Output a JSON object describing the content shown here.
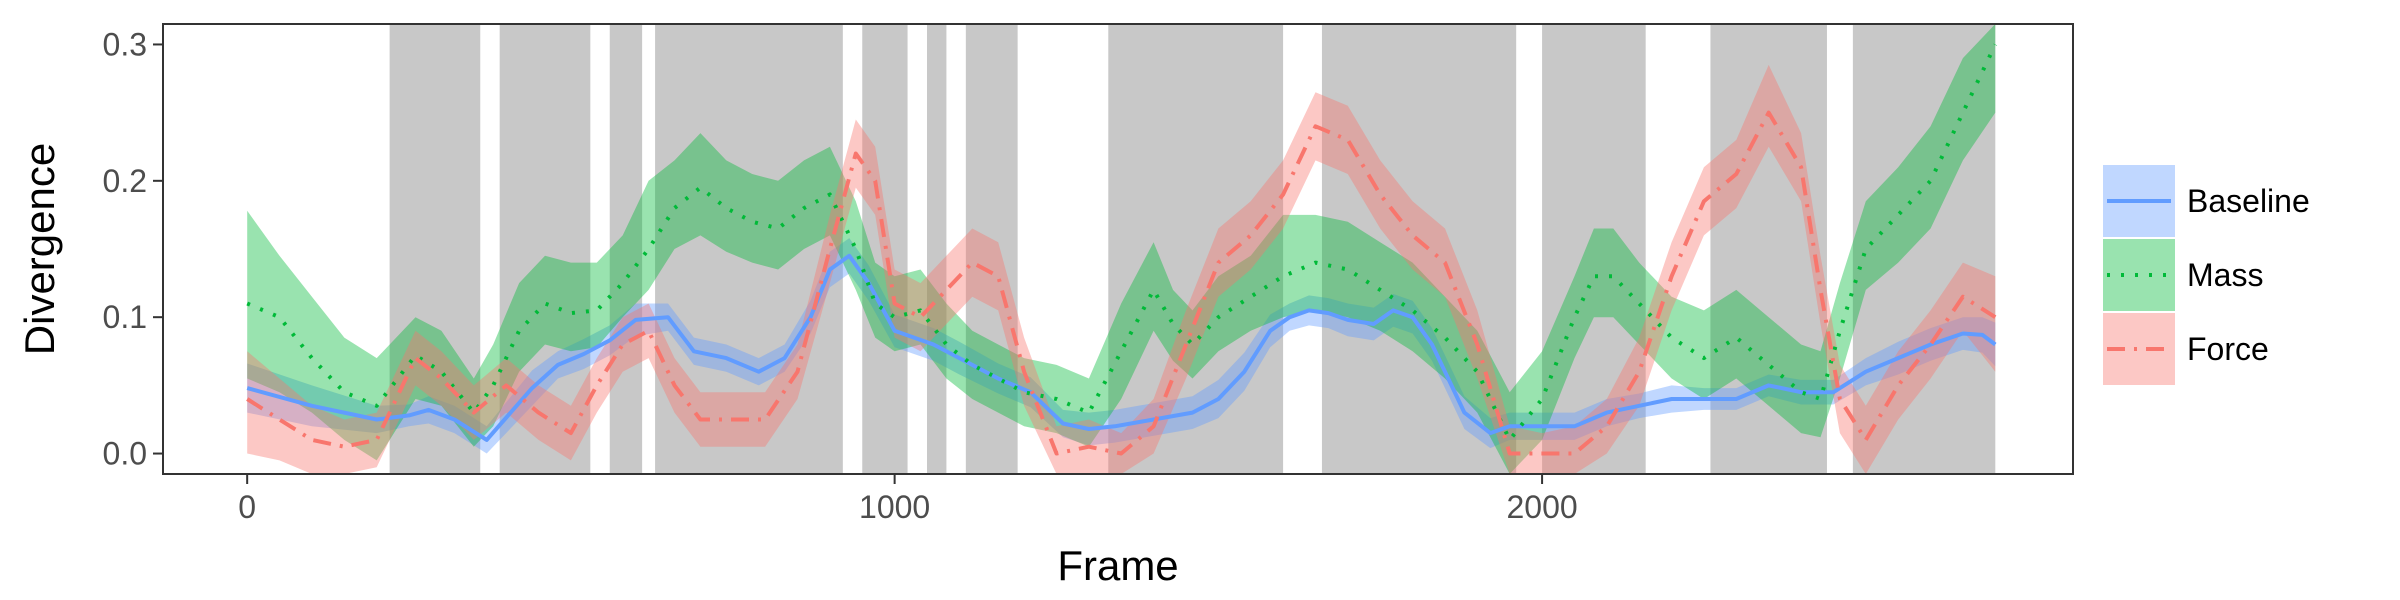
{
  "chart_data": {
    "type": "line",
    "xlabel": "Frame",
    "ylabel": "Divergence",
    "xlim": [
      -130,
      2820
    ],
    "ylim": [
      -0.015,
      0.315
    ],
    "x_ticks": [
      0,
      1000,
      2000
    ],
    "x_tick_labels": [
      "0",
      "1000",
      "2000"
    ],
    "y_ticks": [
      0,
      0.1,
      0.2,
      0.3
    ],
    "y_tick_labels": [
      "0.0",
      "0.1",
      "0.2",
      "0.3"
    ],
    "grid": false,
    "legend_position": "right",
    "shaded_intervals": [
      [
        220,
        360
      ],
      [
        390,
        530
      ],
      [
        560,
        610
      ],
      [
        630,
        920
      ],
      [
        950,
        1020
      ],
      [
        1050,
        1080
      ],
      [
        1110,
        1190
      ],
      [
        1330,
        1600
      ],
      [
        1660,
        1960
      ],
      [
        2000,
        2160
      ],
      [
        2260,
        2440
      ],
      [
        2480,
        2700
      ]
    ],
    "series": [
      {
        "name": "Baseline",
        "color": "#619cff",
        "dash": "solid",
        "x": [
          0,
          100,
          200,
          250,
          280,
          320,
          370,
          440,
          480,
          520,
          560,
          600,
          650,
          690,
          740,
          790,
          830,
          870,
          900,
          930,
          960,
          1000,
          1060,
          1100,
          1160,
          1210,
          1260,
          1300,
          1340,
          1400,
          1460,
          1500,
          1540,
          1580,
          1610,
          1640,
          1670,
          1700,
          1740,
          1770,
          1800,
          1830,
          1850,
          1880,
          1920,
          1950,
          2000,
          2050,
          2100,
          2150,
          2200,
          2250,
          2300,
          2350,
          2400,
          2450,
          2500,
          2550,
          2600,
          2650,
          2680,
          2700
        ],
        "values": [
          0.048,
          0.035,
          0.025,
          0.028,
          0.032,
          0.025,
          0.01,
          0.048,
          0.065,
          0.073,
          0.083,
          0.098,
          0.1,
          0.075,
          0.07,
          0.06,
          0.07,
          0.1,
          0.135,
          0.145,
          0.125,
          0.09,
          0.08,
          0.07,
          0.055,
          0.045,
          0.022,
          0.018,
          0.02,
          0.025,
          0.03,
          0.04,
          0.06,
          0.09,
          0.1,
          0.105,
          0.103,
          0.098,
          0.095,
          0.105,
          0.1,
          0.08,
          0.06,
          0.03,
          0.015,
          0.02,
          0.02,
          0.02,
          0.03,
          0.035,
          0.04,
          0.04,
          0.04,
          0.05,
          0.045,
          0.045,
          0.06,
          0.07,
          0.08,
          0.088,
          0.087,
          0.08
        ],
        "lower": [
          0.03,
          0.02,
          0.015,
          0.02,
          0.022,
          0.015,
          0.0,
          0.035,
          0.055,
          0.062,
          0.072,
          0.086,
          0.09,
          0.065,
          0.06,
          0.05,
          0.06,
          0.088,
          0.122,
          0.132,
          0.112,
          0.078,
          0.068,
          0.058,
          0.044,
          0.034,
          0.012,
          0.006,
          0.008,
          0.013,
          0.018,
          0.026,
          0.046,
          0.078,
          0.09,
          0.094,
          0.092,
          0.086,
          0.083,
          0.093,
          0.088,
          0.068,
          0.048,
          0.018,
          0.004,
          0.01,
          0.01,
          0.01,
          0.02,
          0.026,
          0.03,
          0.032,
          0.032,
          0.042,
          0.036,
          0.036,
          0.05,
          0.058,
          0.068,
          0.076,
          0.074,
          0.064
        ],
        "upper": [
          0.066,
          0.05,
          0.035,
          0.036,
          0.042,
          0.035,
          0.02,
          0.061,
          0.075,
          0.084,
          0.094,
          0.11,
          0.11,
          0.085,
          0.08,
          0.07,
          0.08,
          0.112,
          0.148,
          0.158,
          0.138,
          0.102,
          0.092,
          0.082,
          0.066,
          0.056,
          0.032,
          0.03,
          0.032,
          0.037,
          0.042,
          0.054,
          0.074,
          0.102,
          0.11,
          0.116,
          0.114,
          0.11,
          0.107,
          0.117,
          0.112,
          0.092,
          0.072,
          0.042,
          0.026,
          0.03,
          0.03,
          0.03,
          0.04,
          0.044,
          0.05,
          0.048,
          0.048,
          0.058,
          0.054,
          0.054,
          0.07,
          0.082,
          0.092,
          0.1,
          0.1,
          0.096
        ]
      },
      {
        "name": "Mass",
        "color": "#00ba38",
        "dash": "dotted",
        "x": [
          0,
          50,
          100,
          150,
          200,
          260,
          300,
          350,
          380,
          420,
          460,
          500,
          540,
          580,
          620,
          660,
          700,
          740,
          780,
          820,
          860,
          900,
          940,
          970,
          1000,
          1040,
          1080,
          1120,
          1160,
          1200,
          1250,
          1300,
          1350,
          1400,
          1430,
          1460,
          1500,
          1550,
          1600,
          1650,
          1700,
          1750,
          1800,
          1850,
          1900,
          1950,
          2000,
          2050,
          2080,
          2110,
          2150,
          2200,
          2250,
          2300,
          2350,
          2400,
          2430,
          2460,
          2500,
          2550,
          2600,
          2650,
          2700
        ],
        "values": [
          0.11,
          0.1,
          0.07,
          0.045,
          0.035,
          0.072,
          0.06,
          0.03,
          0.05,
          0.09,
          0.11,
          0.103,
          0.105,
          0.125,
          0.15,
          0.18,
          0.195,
          0.18,
          0.17,
          0.165,
          0.18,
          0.19,
          0.15,
          0.11,
          0.1,
          0.105,
          0.08,
          0.065,
          0.055,
          0.045,
          0.04,
          0.03,
          0.075,
          0.12,
          0.095,
          0.08,
          0.1,
          0.115,
          0.13,
          0.14,
          0.135,
          0.12,
          0.105,
          0.085,
          0.06,
          0.01,
          0.04,
          0.1,
          0.13,
          0.13,
          0.11,
          0.085,
          0.07,
          0.085,
          0.065,
          0.045,
          0.04,
          0.09,
          0.15,
          0.175,
          0.2,
          0.25,
          0.3
        ],
        "lower": [
          0.055,
          0.045,
          0.03,
          0.01,
          -0.005,
          0.04,
          0.035,
          0.005,
          0.02,
          0.06,
          0.08,
          0.075,
          0.078,
          0.1,
          0.12,
          0.15,
          0.16,
          0.148,
          0.14,
          0.135,
          0.15,
          0.16,
          0.12,
          0.085,
          0.075,
          0.08,
          0.055,
          0.04,
          0.03,
          0.02,
          0.015,
          0.005,
          0.04,
          0.09,
          0.068,
          0.055,
          0.075,
          0.09,
          0.1,
          0.105,
          0.1,
          0.09,
          0.075,
          0.055,
          0.03,
          -0.015,
          0.01,
          0.07,
          0.1,
          0.1,
          0.08,
          0.055,
          0.04,
          0.055,
          0.035,
          0.015,
          0.012,
          0.055,
          0.12,
          0.14,
          0.165,
          0.215,
          0.25
        ],
        "upper": [
          0.178,
          0.145,
          0.115,
          0.085,
          0.07,
          0.1,
          0.09,
          0.055,
          0.08,
          0.125,
          0.145,
          0.14,
          0.14,
          0.16,
          0.2,
          0.215,
          0.235,
          0.215,
          0.205,
          0.2,
          0.215,
          0.225,
          0.185,
          0.14,
          0.13,
          0.135,
          0.11,
          0.09,
          0.08,
          0.07,
          0.065,
          0.055,
          0.11,
          0.155,
          0.12,
          0.105,
          0.13,
          0.145,
          0.175,
          0.175,
          0.17,
          0.155,
          0.14,
          0.115,
          0.09,
          0.045,
          0.075,
          0.13,
          0.165,
          0.165,
          0.14,
          0.115,
          0.105,
          0.12,
          0.1,
          0.08,
          0.075,
          0.125,
          0.185,
          0.21,
          0.24,
          0.29,
          0.315
        ]
      },
      {
        "name": "Force",
        "color": "#f8766d",
        "dash": "dashdot",
        "x": [
          0,
          50,
          100,
          150,
          200,
          260,
          300,
          350,
          400,
          450,
          500,
          540,
          580,
          620,
          660,
          700,
          750,
          800,
          850,
          900,
          940,
          970,
          1000,
          1040,
          1080,
          1120,
          1160,
          1200,
          1250,
          1300,
          1350,
          1400,
          1450,
          1500,
          1550,
          1600,
          1650,
          1700,
          1750,
          1800,
          1850,
          1900,
          1950,
          2000,
          2050,
          2100,
          2150,
          2200,
          2250,
          2300,
          2350,
          2400,
          2430,
          2460,
          2500,
          2550,
          2600,
          2650,
          2700
        ],
        "values": [
          0.04,
          0.025,
          0.01,
          0.005,
          0.01,
          0.07,
          0.055,
          0.03,
          0.05,
          0.03,
          0.015,
          0.05,
          0.08,
          0.09,
          0.05,
          0.025,
          0.025,
          0.025,
          0.06,
          0.15,
          0.22,
          0.2,
          0.11,
          0.1,
          0.12,
          0.14,
          0.13,
          0.06,
          0.0,
          0.005,
          0.0,
          0.02,
          0.08,
          0.14,
          0.16,
          0.19,
          0.24,
          0.23,
          0.19,
          0.16,
          0.14,
          0.08,
          0.0,
          0.0,
          0.0,
          0.02,
          0.06,
          0.13,
          0.185,
          0.205,
          0.25,
          0.21,
          0.12,
          0.04,
          0.01,
          0.05,
          0.08,
          0.115,
          0.1
        ],
        "lower": [
          0.0,
          -0.005,
          -0.015,
          -0.015,
          -0.01,
          0.05,
          0.035,
          0.01,
          0.03,
          0.01,
          -0.005,
          0.03,
          0.06,
          0.07,
          0.03,
          0.005,
          0.005,
          0.005,
          0.04,
          0.125,
          0.195,
          0.175,
          0.085,
          0.075,
          0.095,
          0.115,
          0.105,
          0.035,
          -0.015,
          -0.015,
          -0.015,
          0.0,
          0.055,
          0.115,
          0.135,
          0.165,
          0.215,
          0.205,
          0.165,
          0.135,
          0.115,
          0.055,
          -0.015,
          -0.015,
          -0.015,
          0.0,
          0.035,
          0.105,
          0.16,
          0.18,
          0.225,
          0.185,
          0.095,
          0.015,
          -0.015,
          0.025,
          0.055,
          0.09,
          0.06
        ],
        "upper": [
          0.075,
          0.055,
          0.035,
          0.025,
          0.03,
          0.09,
          0.075,
          0.05,
          0.07,
          0.05,
          0.035,
          0.07,
          0.1,
          0.11,
          0.07,
          0.045,
          0.045,
          0.045,
          0.08,
          0.175,
          0.245,
          0.225,
          0.135,
          0.125,
          0.145,
          0.165,
          0.155,
          0.085,
          0.02,
          0.025,
          0.015,
          0.04,
          0.105,
          0.165,
          0.185,
          0.215,
          0.265,
          0.255,
          0.215,
          0.185,
          0.165,
          0.105,
          0.02,
          0.015,
          0.02,
          0.04,
          0.085,
          0.155,
          0.21,
          0.23,
          0.285,
          0.235,
          0.145,
          0.065,
          0.035,
          0.075,
          0.105,
          0.14,
          0.13
        ]
      }
    ]
  }
}
